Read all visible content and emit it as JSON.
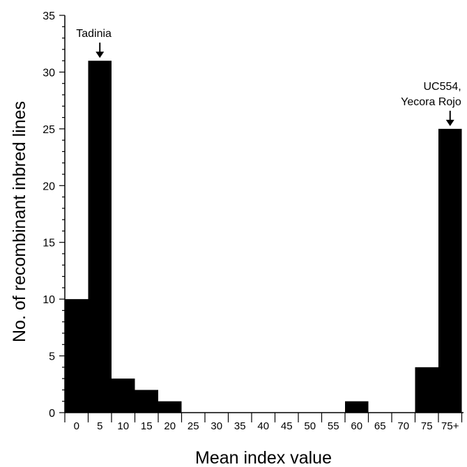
{
  "chart_data": {
    "type": "bar",
    "title": "",
    "xlabel": "Mean index value",
    "ylabel": "No. of recombinant inbred lines",
    "categories": [
      "0",
      "5",
      "10",
      "15",
      "20",
      "25",
      "30",
      "35",
      "40",
      "45",
      "50",
      "55",
      "60",
      "65",
      "70",
      "75",
      "75+"
    ],
    "values": [
      10,
      31,
      3,
      2,
      1,
      0,
      0,
      0,
      0,
      0,
      0,
      0,
      1,
      0,
      0,
      4,
      25
    ],
    "ylim": [
      0,
      35
    ],
    "yticks": [
      "0",
      "5",
      "10",
      "15",
      "20",
      "25",
      "30",
      "35"
    ],
    "grid": false,
    "bar_color": "#000000",
    "annotations": [
      {
        "category": "5",
        "lines": [
          "Tadinia"
        ]
      },
      {
        "category": "75+",
        "lines": [
          "UC554,",
          "Yecora Rojo"
        ]
      }
    ]
  }
}
